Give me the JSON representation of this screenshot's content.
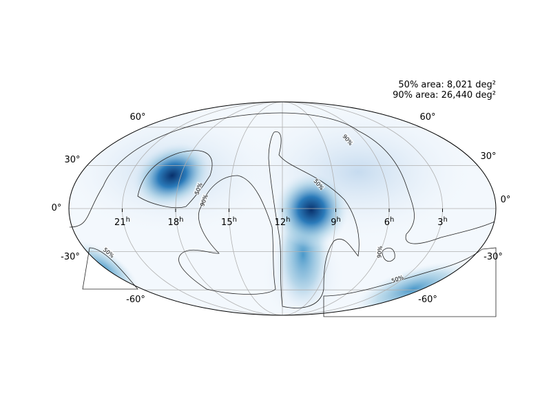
{
  "annotation": {
    "line1": "50% area: 8,021 deg²",
    "line2": "90% area: 26,440 deg²"
  },
  "ra_labels": [
    {
      "hours": "21",
      "unit": "h"
    },
    {
      "hours": "18",
      "unit": "h"
    },
    {
      "hours": "15",
      "unit": "h"
    },
    {
      "hours": "12",
      "unit": "h"
    },
    {
      "hours": "9",
      "unit": "h"
    },
    {
      "hours": "6",
      "unit": "h"
    },
    {
      "hours": "3",
      "unit": "h"
    }
  ],
  "dec_labels_left": [
    "60°",
    "30°",
    "0°",
    "-30°",
    "-60°"
  ],
  "dec_labels_right": [
    "60°",
    "30°",
    "0°",
    "-30°",
    "-60°"
  ],
  "contour_labels": [
    "90%",
    "50%",
    "90%",
    "50%",
    "90%",
    "50%",
    "50%"
  ]
}
